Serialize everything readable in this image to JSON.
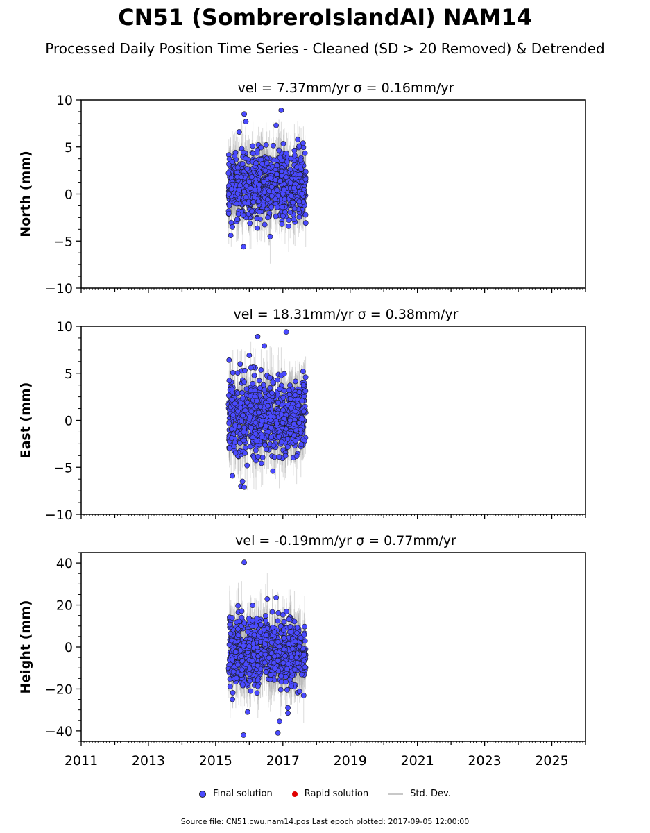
{
  "title": "CN51 (SombreroIslandAI) NAM14",
  "subtitle": "Processed Daily Position Time Series - Cleaned (SD > 20 Removed) & Detrended",
  "legend": {
    "final_label": "Final solution",
    "rapid_label": "Rapid solution",
    "std_label": "Std. Dev.",
    "final_color": "#4a4aff",
    "rapid_color": "#e00000",
    "std_color": "#c8c8c8"
  },
  "footer": "Source file: CN51.cwu.nam14.pos  Last epoch plotted: 2017-09-05 12:00:00",
  "chart_data": [
    {
      "type": "scatter",
      "title": "vel = 7.37mm/yr   σ = 0.16mm/yr",
      "ylabel": "North (mm)",
      "xlim": [
        2011,
        2026
      ],
      "ylim": [
        -10,
        10
      ],
      "yticks": [
        10,
        5,
        0,
        -5,
        -10
      ],
      "ytick_labels": [
        "10",
        "5",
        "0",
        "−5",
        "−10"
      ],
      "x_range_of_data": [
        2015.38,
        2017.68
      ],
      "typical_y_range": [
        -3,
        5
      ],
      "series": [
        {
          "name": "Final solution",
          "color": "#4a4aff",
          "x": [
            2015.45,
            2015.7,
            2015.85,
            2015.9,
            2016.1,
            2016.55,
            2016.8,
            2016.95,
            2017.6,
            2015.5,
            2015.83
          ],
          "y": [
            -4.4,
            6.6,
            8.5,
            7.7,
            5.1,
            -2.5,
            7.3,
            8.9,
            5.4,
            -3.5,
            -5.6
          ]
        }
      ]
    },
    {
      "type": "scatter",
      "title": "vel = 18.31mm/yr   σ = 0.38mm/yr",
      "ylabel": "East (mm)",
      "xlim": [
        2011,
        2026
      ],
      "ylim": [
        -10,
        10
      ],
      "yticks": [
        10,
        5,
        0,
        -5,
        -10
      ],
      "ytick_labels": [
        "10",
        "5",
        "0",
        "−5",
        "−10"
      ],
      "x_range_of_data": [
        2015.38,
        2017.68
      ],
      "typical_y_range": [
        -4,
        5
      ],
      "series": [
        {
          "name": "Final solution",
          "color": "#4a4aff",
          "x": [
            2015.4,
            2015.75,
            2015.8,
            2015.85,
            2016.0,
            2016.25,
            2016.45,
            2016.7,
            2017.1,
            2017.6,
            2015.5
          ],
          "y": [
            6.4,
            -7.0,
            -6.5,
            -7.1,
            6.9,
            8.9,
            7.9,
            -5.4,
            9.4,
            5.2,
            -5.9
          ]
        }
      ]
    },
    {
      "type": "scatter",
      "title": "vel = -0.19mm/yr   σ = 0.77mm/yr",
      "ylabel": "Height (mm)",
      "xlim": [
        2011,
        2026
      ],
      "ylim": [
        -45,
        45
      ],
      "yticks": [
        40,
        20,
        0,
        -20,
        -40
      ],
      "ytick_labels": [
        "40",
        "20",
        "0",
        "−20",
        "−40"
      ],
      "xticks": [
        2011,
        2013,
        2015,
        2017,
        2019,
        2021,
        2023,
        2025
      ],
      "xtick_labels": [
        "2011",
        "2013",
        "2015",
        "2017",
        "2019",
        "2021",
        "2023",
        "2025"
      ],
      "x_range_of_data": [
        2015.38,
        2017.68
      ],
      "typical_y_range": [
        -20,
        15
      ],
      "series": [
        {
          "name": "Final solution",
          "color": "#4a4aff",
          "x": [
            2015.85,
            2015.95,
            2015.83,
            2016.85,
            2016.8,
            2016.9,
            2017.15,
            2017.15,
            2016.1,
            2015.5
          ],
          "y": [
            40.3,
            -31.0,
            -42.0,
            -41.0,
            23.5,
            -35.5,
            -29.0,
            -31.5,
            19.8,
            -25.0
          ]
        }
      ]
    }
  ]
}
